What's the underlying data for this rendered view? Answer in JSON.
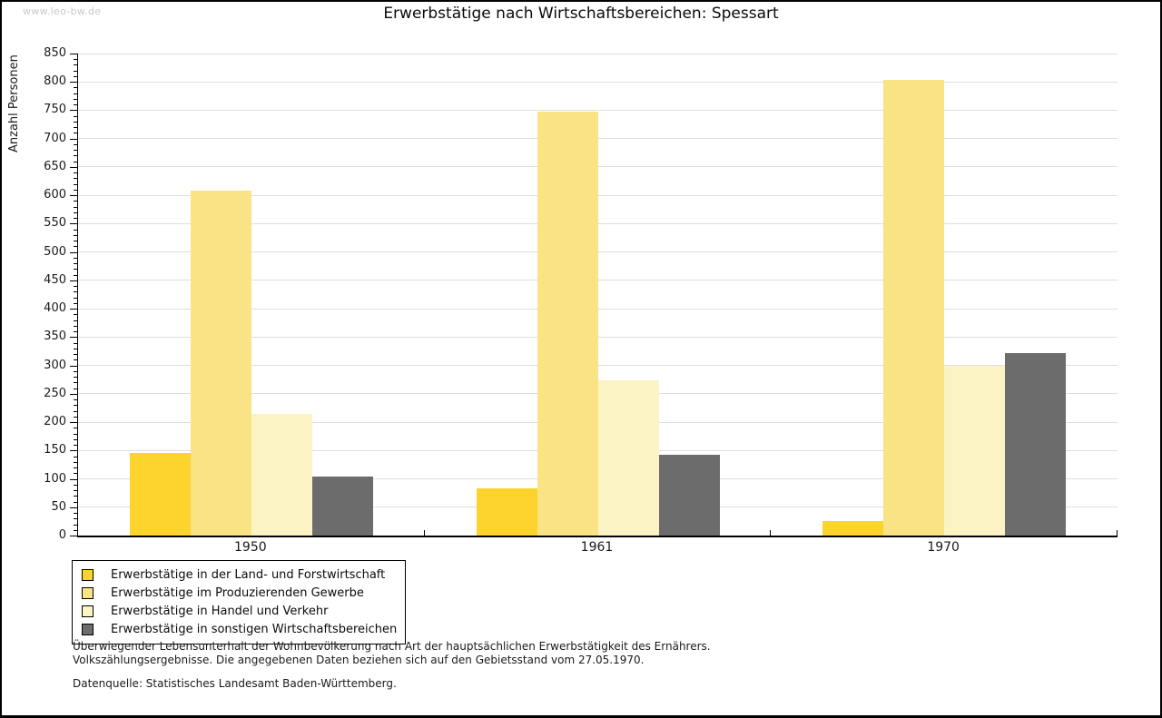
{
  "watermark": "www.leo-bw.de",
  "header": {
    "title": "Erwerbstätige nach Wirtschaftsbereichen: Spessart"
  },
  "footnotes": {
    "line1": "Überwiegender Lebensunterhalt der Wohnbevölkerung nach Art der hauptsächlichen Erwerbstätigkeit des Ernährers.",
    "line2": "Volkszählungsergebnisse. Die angegebenen Daten beziehen sich auf den Gebietsstand vom 27.05.1970.",
    "source": "Datenquelle: Statistisches Landesamt Baden-Württemberg."
  },
  "colors": {
    "grid": "#dedede",
    "axis": "#000000",
    "watermark": "#c9c9c9",
    "background": "#ffffff"
  },
  "chart_data": {
    "type": "bar",
    "title": "Erwerbstätige nach Wirtschaftsbereichen: Spessart",
    "xlabel": "",
    "ylabel": "Anzahl Personen",
    "categories": [
      "1950",
      "1961",
      "1970"
    ],
    "series": [
      {
        "name": "Erwerbstätige in der Land- und Forstwirtschaft",
        "color": "#FDD32D",
        "values": [
          146,
          83,
          25
        ]
      },
      {
        "name": "Erwerbstätige im Produzierenden Gewerbe",
        "color": "#FAE385",
        "values": [
          609,
          748,
          803
        ]
      },
      {
        "name": "Erwerbstätige in Handel und Verkehr",
        "color": "#FCF3C5",
        "values": [
          215,
          273,
          300
        ]
      },
      {
        "name": "Erwerbstätige in sonstigen Wirtschaftsbereichen",
        "color": "#6C6C6C",
        "values": [
          104,
          142,
          322
        ]
      }
    ],
    "ylim": [
      0,
      850
    ],
    "ytick_major": 50,
    "ytick_minor": 10,
    "grid": "horizontal-major",
    "legend_position": "bottom-left"
  }
}
